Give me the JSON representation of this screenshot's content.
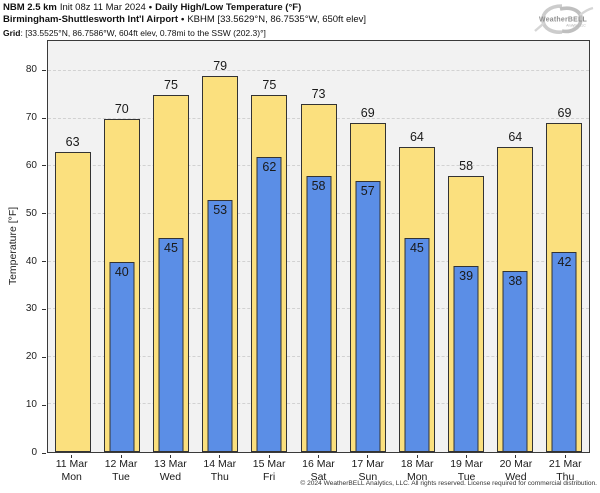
{
  "header": {
    "line1": {
      "model": "NBM 2.5 km",
      "init": "Init 08z 11 Mar 2024",
      "separator": "•",
      "product": "Daily High/Low Temperature (°F)"
    },
    "line2": {
      "station_name": "Birmingham-Shuttlesworth Int'l Airport",
      "separator": "•",
      "station_info": "KBHM [33.5629°N, 86.7535°W, 650ft elev]"
    },
    "line3": {
      "label": "Grid",
      "info": ": [33.5525°N, 86.7586°W, 604ft elev, 0.78mi to the SSW (202.3)°]"
    }
  },
  "logo": {
    "name": "WeatherBELL",
    "subtext": "Analytics LLC"
  },
  "chart_data": {
    "type": "bar",
    "title": "Daily High/Low Temperature (°F)",
    "ylabel": "Temperature [°F]",
    "yticks": [
      0,
      10,
      20,
      30,
      40,
      50,
      60,
      70,
      80
    ],
    "ylim": [
      0,
      86.3
    ],
    "grid": "horizontal-dashed",
    "plot_bg": "#f2f2f2",
    "categories": [
      {
        "date": "11 Mar",
        "day": "Mon"
      },
      {
        "date": "12 Mar",
        "day": "Tue"
      },
      {
        "date": "13 Mar",
        "day": "Wed"
      },
      {
        "date": "14 Mar",
        "day": "Thu"
      },
      {
        "date": "15 Mar",
        "day": "Fri"
      },
      {
        "date": "16 Mar",
        "day": "Sat"
      },
      {
        "date": "17 Mar",
        "day": "Sun"
      },
      {
        "date": "18 Mar",
        "day": "Mon"
      },
      {
        "date": "19 Mar",
        "day": "Tue"
      },
      {
        "date": "20 Mar",
        "day": "Wed"
      },
      {
        "date": "21 Mar",
        "day": "Thu"
      }
    ],
    "series": [
      {
        "name": "High",
        "color": "#fbe07e",
        "values": [
          63,
          70,
          75,
          79,
          75,
          73,
          69,
          64,
          58,
          64,
          69
        ]
      },
      {
        "name": "Low",
        "color": "#5b8ee6",
        "values": [
          null,
          40,
          45,
          53,
          62,
          58,
          57,
          45,
          39,
          38,
          42
        ]
      }
    ]
  },
  "footer": {
    "copyright": "© 2024 WeatherBELL Analytics, LLC. All rights reserved. License required for commercial distribution."
  }
}
